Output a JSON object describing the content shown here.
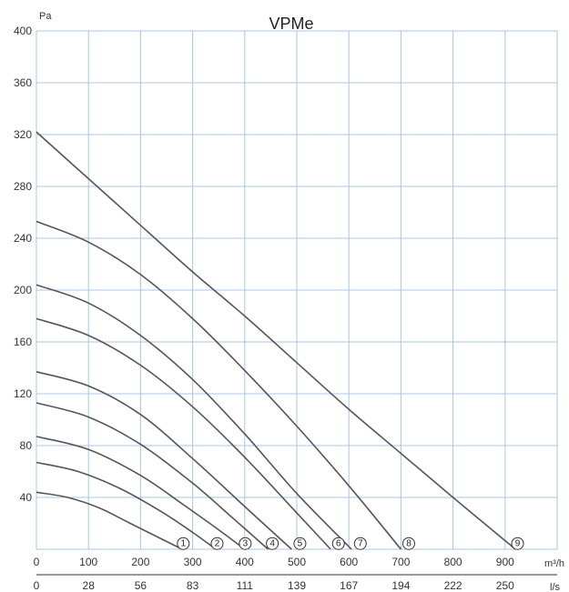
{
  "chart_data": {
    "type": "line",
    "title": "VPMe",
    "ylabel": "Pa",
    "xlabel_primary": "m³/h",
    "xlabel_secondary": "l/s",
    "ylim": [
      0,
      400
    ],
    "xlim": [
      0,
      1000
    ],
    "grid": true,
    "y_ticks": [
      "400",
      "360",
      "320",
      "280",
      "240",
      "200",
      "160",
      "120",
      "80",
      "40"
    ],
    "y_tick_values": [
      400,
      360,
      320,
      280,
      240,
      200,
      160,
      120,
      80,
      40
    ],
    "x_ticks": [
      "0",
      "100",
      "200",
      "300",
      "400",
      "500",
      "600",
      "700",
      "800",
      "900"
    ],
    "x_tick_values": [
      0,
      100,
      200,
      300,
      400,
      500,
      600,
      700,
      800,
      900
    ],
    "x2_ticks": [
      "0",
      "28",
      "56",
      "83",
      "111",
      "139",
      "167",
      "194",
      "222",
      "250"
    ],
    "series": [
      {
        "name": "1",
        "x": [
          0,
          60,
          120,
          180,
          240,
          280
        ],
        "y": [
          44,
          40,
          32,
          20,
          8,
          0
        ]
      },
      {
        "name": "2",
        "x": [
          0,
          80,
          160,
          240,
          300,
          345
        ],
        "y": [
          67,
          60,
          47,
          29,
          13,
          0
        ]
      },
      {
        "name": "3",
        "x": [
          0,
          100,
          200,
          280,
          350,
          400
        ],
        "y": [
          87,
          77,
          57,
          35,
          15,
          0
        ]
      },
      {
        "name": "4",
        "x": [
          0,
          100,
          200,
          300,
          380,
          445
        ],
        "y": [
          113,
          102,
          81,
          51,
          23,
          0
        ]
      },
      {
        "name": "5",
        "x": [
          0,
          100,
          200,
          300,
          400,
          490
        ],
        "y": [
          137,
          126,
          104,
          70,
          33,
          0
        ]
      },
      {
        "name": "6",
        "x": [
          0,
          100,
          200,
          300,
          400,
          500,
          565
        ],
        "y": [
          178,
          165,
          142,
          110,
          71,
          28,
          0
        ]
      },
      {
        "name": "7",
        "x": [
          0,
          100,
          200,
          300,
          400,
          500,
          605
        ],
        "y": [
          204,
          190,
          165,
          131,
          89,
          43,
          0
        ]
      },
      {
        "name": "8",
        "x": [
          0,
          100,
          200,
          300,
          400,
          500,
          600,
          700
        ],
        "y": [
          253,
          237,
          212,
          178,
          138,
          95,
          49,
          0
        ]
      },
      {
        "name": "9",
        "x": [
          0,
          100,
          200,
          300,
          400,
          500,
          600,
          700,
          800,
          920
        ],
        "y": [
          322,
          286,
          250,
          214,
          180,
          144,
          108,
          74,
          40,
          0
        ]
      }
    ],
    "markers": [
      {
        "label": "1",
        "x": 282,
        "y": 3
      },
      {
        "label": "2",
        "x": 347,
        "y": 3
      },
      {
        "label": "3",
        "x": 401,
        "y": 3
      },
      {
        "label": "4",
        "x": 453,
        "y": 3
      },
      {
        "label": "5",
        "x": 506,
        "y": 3
      },
      {
        "label": "6",
        "x": 580,
        "y": 3
      },
      {
        "label": "7",
        "x": 622,
        "y": 3
      },
      {
        "label": "8",
        "x": 715,
        "y": 3
      },
      {
        "label": "9",
        "x": 924,
        "y": 3
      }
    ],
    "colors": {
      "grid": "#a9c4e6",
      "curve": "#555555",
      "text": "#333333"
    }
  }
}
